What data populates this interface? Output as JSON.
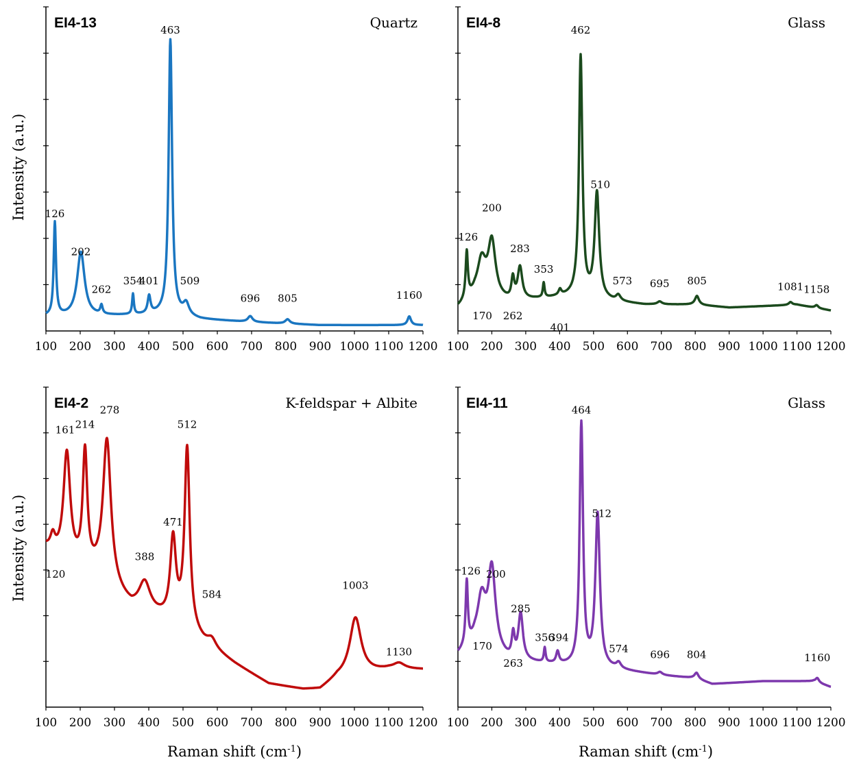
{
  "figure": {
    "ylabel": "Intensity (a.u.)",
    "xlabel_main": "Raman shift (cm",
    "xlabel_sup": "-1",
    "xlabel_close": ")"
  },
  "chart_data": [
    {
      "type": "line",
      "title": "EI4-13",
      "subtitle": "Quartz",
      "xlabel": "",
      "ylabel": "Intensity (a.u.)",
      "xlim": [
        100,
        1200
      ],
      "ylim": [
        0,
        1
      ],
      "x_ticks": [
        100,
        200,
        300,
        400,
        500,
        600,
        700,
        800,
        900,
        1000,
        1100,
        1200
      ],
      "color": "#1a76c1",
      "baseline": [
        [
          100,
          0.05
        ],
        [
          200,
          0.05
        ],
        [
          400,
          0.055
        ],
        [
          460,
          0.06
        ],
        [
          550,
          0.04
        ],
        [
          700,
          0.03
        ],
        [
          900,
          0.02
        ],
        [
          1200,
          0.02
        ]
      ],
      "peaks": [
        {
          "x": 126,
          "h": 0.32,
          "w": 4
        },
        {
          "x": 202,
          "h": 0.22,
          "w": 13
        },
        {
          "x": 262,
          "h": 0.03,
          "w": 4
        },
        {
          "x": 354,
          "h": 0.07,
          "w": 3
        },
        {
          "x": 401,
          "h": 0.06,
          "w": 5
        },
        {
          "x": 463,
          "h": 0.94,
          "w": 6
        },
        {
          "x": 509,
          "h": 0.04,
          "w": 10
        },
        {
          "x": 696,
          "h": 0.02,
          "w": 8
        },
        {
          "x": 805,
          "h": 0.015,
          "w": 8
        },
        {
          "x": 1160,
          "h": 0.03,
          "w": 6
        }
      ],
      "peak_labels": [
        {
          "x": 126,
          "y": 0.39,
          "text": "126"
        },
        {
          "x": 202,
          "y": 0.26,
          "text": "202"
        },
        {
          "x": 262,
          "y": 0.13,
          "text": "262"
        },
        {
          "x": 354,
          "y": 0.16,
          "text": "354"
        },
        {
          "x": 401,
          "y": 0.16,
          "text": "401"
        },
        {
          "x": 463,
          "y": 1.02,
          "text": "463"
        },
        {
          "x": 520,
          "y": 0.16,
          "text": "509"
        },
        {
          "x": 696,
          "y": 0.1,
          "text": "696"
        },
        {
          "x": 805,
          "y": 0.1,
          "text": "805"
        },
        {
          "x": 1160,
          "y": 0.11,
          "text": "1160"
        }
      ],
      "tick_labels": [
        "100",
        "200",
        "300",
        "400",
        "500",
        "600",
        "700",
        "800",
        "900",
        "1000",
        "1100",
        "1200"
      ]
    },
    {
      "type": "line",
      "title": "EI4-8",
      "subtitle": "Glass",
      "xlabel": "",
      "ylabel": "",
      "xlim": [
        100,
        1200
      ],
      "ylim": [
        0,
        1
      ],
      "x_ticks": [
        100,
        200,
        300,
        400,
        500,
        600,
        700,
        800,
        900,
        1000,
        1100,
        1200
      ],
      "color": "#1b4a1d",
      "baseline": [
        [
          100,
          0.08
        ],
        [
          150,
          0.12
        ],
        [
          250,
          0.1
        ],
        [
          450,
          0.12
        ],
        [
          560,
          0.1
        ],
        [
          650,
          0.09
        ],
        [
          800,
          0.09
        ],
        [
          900,
          0.08
        ],
        [
          1100,
          0.09
        ],
        [
          1200,
          0.07
        ]
      ],
      "peaks": [
        {
          "x": 126,
          "h": 0.16,
          "w": 4
        },
        {
          "x": 170,
          "h": 0.12,
          "w": 15
        },
        {
          "x": 200,
          "h": 0.19,
          "w": 13
        },
        {
          "x": 262,
          "h": 0.07,
          "w": 5
        },
        {
          "x": 283,
          "h": 0.11,
          "w": 8
        },
        {
          "x": 353,
          "h": 0.05,
          "w": 3
        },
        {
          "x": 401,
          "h": 0.02,
          "w": 5
        },
        {
          "x": 462,
          "h": 0.82,
          "w": 6
        },
        {
          "x": 510,
          "h": 0.36,
          "w": 8
        },
        {
          "x": 573,
          "h": 0.02,
          "w": 8
        },
        {
          "x": 695,
          "h": 0.01,
          "w": 8
        },
        {
          "x": 805,
          "h": 0.03,
          "w": 7
        },
        {
          "x": 1081,
          "h": 0.01,
          "w": 6
        },
        {
          "x": 1158,
          "h": 0.01,
          "w": 6
        }
      ],
      "peak_labels": [
        {
          "x": 130,
          "y": 0.31,
          "text": "126"
        },
        {
          "x": 172,
          "y": 0.04,
          "text": "170"
        },
        {
          "x": 200,
          "y": 0.41,
          "text": "200"
        },
        {
          "x": 262,
          "y": 0.04,
          "text": "262"
        },
        {
          "x": 283,
          "y": 0.27,
          "text": "283"
        },
        {
          "x": 353,
          "y": 0.2,
          "text": "353"
        },
        {
          "x": 401,
          "y": 0.0,
          "text": "401"
        },
        {
          "x": 462,
          "y": 1.02,
          "text": "462"
        },
        {
          "x": 520,
          "y": 0.49,
          "text": "510"
        },
        {
          "x": 585,
          "y": 0.16,
          "text": "573"
        },
        {
          "x": 695,
          "y": 0.15,
          "text": "695"
        },
        {
          "x": 805,
          "y": 0.16,
          "text": "805"
        },
        {
          "x": 1081,
          "y": 0.14,
          "text": "1081"
        },
        {
          "x": 1158,
          "y": 0.13,
          "text": "1158"
        }
      ],
      "tick_labels": [
        "100",
        "200",
        "300",
        "400",
        "500",
        "600",
        "700",
        "800",
        "900",
        "1000",
        "1100",
        "1200"
      ]
    },
    {
      "type": "line",
      "title": "EI4-2",
      "subtitle": "K-feldspar + Albite",
      "xlabel": "Raman shift (cm-1)",
      "ylabel": "Intensity (a.u.)",
      "xlim": [
        100,
        1200
      ],
      "ylim": [
        0,
        1
      ],
      "x_ticks": [
        100,
        200,
        300,
        400,
        500,
        600,
        700,
        800,
        900,
        1000,
        1100,
        1200
      ],
      "color": "#c00b0b",
      "baseline": [
        [
          100,
          0.55
        ],
        [
          150,
          0.5
        ],
        [
          250,
          0.45
        ],
        [
          350,
          0.34
        ],
        [
          430,
          0.31
        ],
        [
          500,
          0.28
        ],
        [
          560,
          0.22
        ],
        [
          650,
          0.15
        ],
        [
          750,
          0.08
        ],
        [
          850,
          0.06
        ],
        [
          900,
          0.06
        ],
        [
          950,
          0.1
        ],
        [
          1050,
          0.12
        ],
        [
          1100,
          0.13
        ],
        [
          1200,
          0.13
        ]
      ],
      "peaks": [
        {
          "x": 120,
          "h": 0.05,
          "w": 8
        },
        {
          "x": 161,
          "h": 0.38,
          "w": 12
        },
        {
          "x": 214,
          "h": 0.4,
          "w": 8
        },
        {
          "x": 278,
          "h": 0.5,
          "w": 14
        },
        {
          "x": 388,
          "h": 0.1,
          "w": 20
        },
        {
          "x": 471,
          "h": 0.28,
          "w": 10
        },
        {
          "x": 512,
          "h": 0.62,
          "w": 9
        },
        {
          "x": 584,
          "h": 0.03,
          "w": 15
        },
        {
          "x": 1003,
          "h": 0.2,
          "w": 20
        },
        {
          "x": 1130,
          "h": 0.02,
          "w": 20
        }
      ],
      "peak_labels": [
        {
          "x": 128,
          "y": 0.45,
          "text": "120"
        },
        {
          "x": 156,
          "y": 0.95,
          "text": "161"
        },
        {
          "x": 214,
          "y": 0.97,
          "text": "214"
        },
        {
          "x": 286,
          "y": 1.02,
          "text": "278"
        },
        {
          "x": 388,
          "y": 0.51,
          "text": "388"
        },
        {
          "x": 471,
          "y": 0.63,
          "text": "471"
        },
        {
          "x": 512,
          "y": 0.97,
          "text": "512"
        },
        {
          "x": 584,
          "y": 0.38,
          "text": "584"
        },
        {
          "x": 1003,
          "y": 0.41,
          "text": "1003"
        },
        {
          "x": 1130,
          "y": 0.18,
          "text": "1130"
        }
      ],
      "tick_labels": [
        "100",
        "200",
        "300",
        "400",
        "500",
        "600",
        "700",
        "800",
        "900",
        "1000",
        "1100",
        "1200"
      ]
    },
    {
      "type": "line",
      "title": "EI4-11",
      "subtitle": "Glass",
      "xlabel": "Raman shift (cm-1)",
      "ylabel": "",
      "xlim": [
        100,
        1200
      ],
      "ylim": [
        0,
        1
      ],
      "x_ticks": [
        100,
        200,
        300,
        400,
        500,
        600,
        700,
        800,
        900,
        1000,
        1100,
        1200
      ],
      "color": "#7d38ad",
      "baseline": [
        [
          100,
          0.18
        ],
        [
          150,
          0.22
        ],
        [
          250,
          0.16
        ],
        [
          450,
          0.14
        ],
        [
          560,
          0.13
        ],
        [
          700,
          0.11
        ],
        [
          800,
          0.1
        ],
        [
          850,
          0.08
        ],
        [
          1000,
          0.09
        ],
        [
          1150,
          0.09
        ],
        [
          1200,
          0.07
        ]
      ],
      "peaks": [
        {
          "x": 126,
          "h": 0.22,
          "w": 4
        },
        {
          "x": 170,
          "h": 0.16,
          "w": 15
        },
        {
          "x": 200,
          "h": 0.28,
          "w": 13
        },
        {
          "x": 263,
          "h": 0.08,
          "w": 5
        },
        {
          "x": 285,
          "h": 0.16,
          "w": 8
        },
        {
          "x": 356,
          "h": 0.05,
          "w": 3
        },
        {
          "x": 394,
          "h": 0.04,
          "w": 5
        },
        {
          "x": 464,
          "h": 0.84,
          "w": 6
        },
        {
          "x": 512,
          "h": 0.53,
          "w": 8
        },
        {
          "x": 574,
          "h": 0.02,
          "w": 8
        },
        {
          "x": 696,
          "h": 0.01,
          "w": 8
        },
        {
          "x": 804,
          "h": 0.02,
          "w": 7
        },
        {
          "x": 1160,
          "h": 0.015,
          "w": 6
        }
      ],
      "peak_labels": [
        {
          "x": 138,
          "y": 0.46,
          "text": "126"
        },
        {
          "x": 172,
          "y": 0.2,
          "text": "170"
        },
        {
          "x": 212,
          "y": 0.45,
          "text": "200"
        },
        {
          "x": 263,
          "y": 0.14,
          "text": "263"
        },
        {
          "x": 285,
          "y": 0.33,
          "text": "285"
        },
        {
          "x": 356,
          "y": 0.23,
          "text": "356"
        },
        {
          "x": 398,
          "y": 0.23,
          "text": "394"
        },
        {
          "x": 464,
          "y": 1.02,
          "text": "464"
        },
        {
          "x": 524,
          "y": 0.66,
          "text": "512"
        },
        {
          "x": 574,
          "y": 0.19,
          "text": "574"
        },
        {
          "x": 696,
          "y": 0.17,
          "text": "696"
        },
        {
          "x": 804,
          "y": 0.17,
          "text": "804"
        },
        {
          "x": 1160,
          "y": 0.16,
          "text": "1160"
        }
      ],
      "tick_labels": [
        "100",
        "200",
        "300",
        "400",
        "500",
        "600",
        "700",
        "800",
        "900",
        "1000",
        "1100",
        "1200"
      ]
    }
  ]
}
